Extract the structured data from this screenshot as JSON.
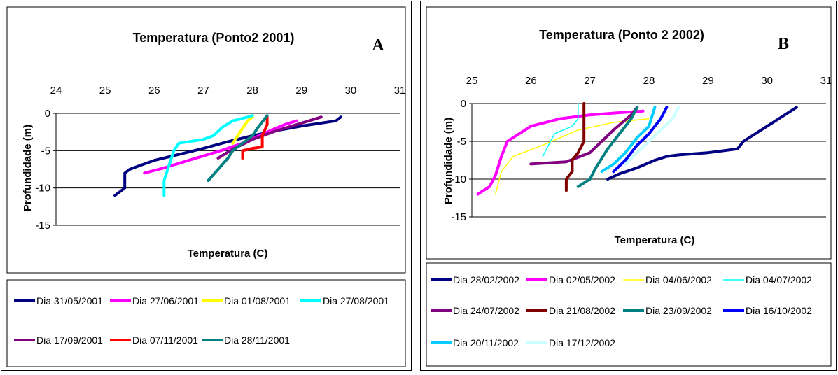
{
  "chart_data": [
    {
      "type": "line",
      "panel_label": "A",
      "title": "Temperatura (Ponto2  2001)",
      "xlabel": "Temperatura (C)",
      "ylabel": "Profundidade (m)",
      "xlim": [
        24,
        31
      ],
      "ylim": [
        -15,
        0
      ],
      "x_ticks": [
        "24",
        "25",
        "26",
        "27",
        "28",
        "29",
        "30",
        "31"
      ],
      "y_ticks": [
        "0",
        "-5",
        "-10",
        "-15"
      ],
      "x_axis_position": "top",
      "grid": "horizontal",
      "legend_position": "bottom",
      "series": [
        {
          "name": "Dia 31/05/2001",
          "color": "#000080",
          "width": 4,
          "x": [
            25.2,
            25.4,
            25.4,
            25.5,
            25.7,
            26.0,
            26.5,
            27.0,
            27.5,
            28.0,
            28.5,
            29.0,
            29.5,
            29.7,
            29.8
          ],
          "y": [
            -11,
            -10,
            -8,
            -7.5,
            -7,
            -6.3,
            -5.5,
            -4.7,
            -3.8,
            -3.0,
            -2.3,
            -1.7,
            -1.2,
            -1.0,
            -0.5
          ]
        },
        {
          "name": "Dia 27/06/2001",
          "color": "#FF00FF",
          "width": 4,
          "x": [
            25.8,
            26.2,
            26.6,
            27.0,
            27.4,
            27.8,
            28.1,
            28.4,
            28.7,
            28.9
          ],
          "y": [
            -8,
            -7.3,
            -6.5,
            -5.7,
            -4.9,
            -4.0,
            -3.1,
            -2.2,
            -1.4,
            -1.0
          ]
        },
        {
          "name": "Dia 01/08/2001",
          "color": "#FFFF00",
          "width": 4,
          "x": [
            27.6,
            27.7,
            27.8,
            27.9,
            28.0
          ],
          "y": [
            -4,
            -3,
            -2,
            -1,
            -0.5
          ]
        },
        {
          "name": "Dia 27/08/2001",
          "color": "#00FFFF",
          "width": 4,
          "x": [
            26.2,
            26.2,
            26.3,
            26.4,
            26.5,
            27.0,
            27.2,
            27.4,
            27.6,
            27.9,
            28.0
          ],
          "y": [
            -11,
            -9,
            -7,
            -5,
            -4,
            -3.5,
            -3,
            -1.8,
            -1.0,
            -0.5,
            -0.3
          ]
        },
        {
          "name": "Dia 17/09/2001",
          "color": "#800080",
          "width": 4,
          "x": [
            27.3,
            27.6,
            28.0,
            28.5,
            29.0,
            29.4
          ],
          "y": [
            -6,
            -4.8,
            -3.5,
            -2.3,
            -1.3,
            -0.5
          ]
        },
        {
          "name": "Dia 07/11/2001",
          "color": "#FF0000",
          "width": 4,
          "x": [
            27.8,
            27.8,
            28.0,
            28.2,
            28.2,
            28.3,
            28.3
          ],
          "y": [
            -6,
            -5,
            -4.7,
            -4.5,
            -3,
            -1.5,
            -0.5
          ]
        },
        {
          "name": "Dia 28/11/2001",
          "color": "#008080",
          "width": 4,
          "x": [
            27.1,
            27.3,
            27.5,
            27.6,
            27.8,
            28.0,
            28.1,
            28.3
          ],
          "y": [
            -9,
            -7.5,
            -6,
            -5,
            -4,
            -3,
            -2,
            -0.3
          ]
        }
      ]
    },
    {
      "type": "line",
      "panel_label": "B",
      "title": "Temperatura (Ponto 2 2002)",
      "xlabel": "Temperatura (C)",
      "ylabel": "Profundidade (m)",
      "xlim": [
        25,
        31
      ],
      "ylim": [
        -15,
        0
      ],
      "x_ticks": [
        "25",
        "26",
        "27",
        "28",
        "29",
        "30",
        "31"
      ],
      "y_ticks": [
        "0",
        "-5",
        "-10",
        "-15"
      ],
      "x_axis_position": "top",
      "grid": "horizontal",
      "legend_position": "bottom",
      "series": [
        {
          "name": "Dia 28/02/2002",
          "color": "#000080",
          "width": 4,
          "x": [
            27.3,
            27.5,
            27.8,
            28.1,
            28.3,
            28.5,
            29.0,
            29.5,
            29.6,
            30.0,
            30.5
          ],
          "y": [
            -10,
            -9.3,
            -8.5,
            -7.5,
            -7.0,
            -6.8,
            -6.5,
            -6.0,
            -5.0,
            -3.0,
            -0.5
          ]
        },
        {
          "name": "Dia 02/05/2002",
          "color": "#FF00FF",
          "width": 4,
          "x": [
            25.1,
            25.3,
            25.4,
            25.5,
            25.6,
            26.0,
            26.5,
            27.0,
            27.5,
            27.9
          ],
          "y": [
            -12,
            -11,
            -9.5,
            -7.0,
            -5.0,
            -3.0,
            -2.0,
            -1.5,
            -1.2,
            -1.0
          ]
        },
        {
          "name": "Dia 04/06/2002",
          "color": "#FFFF00",
          "width": 1.5,
          "x": [
            25.4,
            25.5,
            25.7,
            26.2,
            26.8,
            27.4,
            28.0
          ],
          "y": [
            -12,
            -9,
            -7.0,
            -5.5,
            -3.5,
            -2.5,
            -2.0
          ]
        },
        {
          "name": "Dia 04/07/2002",
          "color": "#00FFFF",
          "width": 1.5,
          "x": [
            26.2,
            26.3,
            26.4,
            26.7,
            26.8,
            26.8
          ],
          "y": [
            -7,
            -5.5,
            -4.0,
            -3.0,
            -2.0,
            0
          ]
        },
        {
          "name": "Dia 24/07/2002",
          "color": "#800080",
          "width": 4,
          "x": [
            26.0,
            26.6,
            27.0,
            27.2,
            27.4,
            27.7,
            27.8
          ],
          "y": [
            -8,
            -7.7,
            -6.5,
            -5.0,
            -3.5,
            -1.5,
            -0.5
          ]
        },
        {
          "name": "Dia 21/08/2002",
          "color": "#800000",
          "width": 4,
          "x": [
            26.6,
            26.6,
            26.7,
            26.7,
            26.8,
            26.9,
            26.9,
            26.9
          ],
          "y": [
            -11.5,
            -10,
            -9.0,
            -7.5,
            -6.5,
            -5.0,
            -2.5,
            0
          ]
        },
        {
          "name": "Dia 23/09/2002",
          "color": "#008080",
          "width": 4,
          "x": [
            26.8,
            27.0,
            27.1,
            27.3,
            27.5,
            27.7,
            27.8
          ],
          "y": [
            -11,
            -10,
            -8.5,
            -6.0,
            -4.0,
            -2.0,
            -0.5
          ]
        },
        {
          "name": "Dia 16/10/2002",
          "color": "#0000FF",
          "width": 4,
          "x": [
            27.4,
            27.6,
            27.8,
            28.0,
            28.1,
            28.2,
            28.3
          ],
          "y": [
            -9,
            -7.5,
            -5.5,
            -4.0,
            -3.0,
            -2.0,
            -0.5
          ]
        },
        {
          "name": "Dia 20/11/2002",
          "color": "#00CCFF",
          "width": 4,
          "x": [
            27.2,
            27.4,
            27.6,
            27.8,
            28.0,
            28.1
          ],
          "y": [
            -9,
            -8,
            -6.5,
            -4.5,
            -3.0,
            -0.5
          ]
        },
        {
          "name": "Dia 17/12/2002",
          "color": "#CCFFFF",
          "width": 4,
          "x": [
            27.6,
            27.8,
            28.0,
            28.2,
            28.4,
            28.5
          ],
          "y": [
            -8,
            -6.5,
            -5.0,
            -3.5,
            -2.0,
            -0.5
          ]
        }
      ]
    }
  ]
}
